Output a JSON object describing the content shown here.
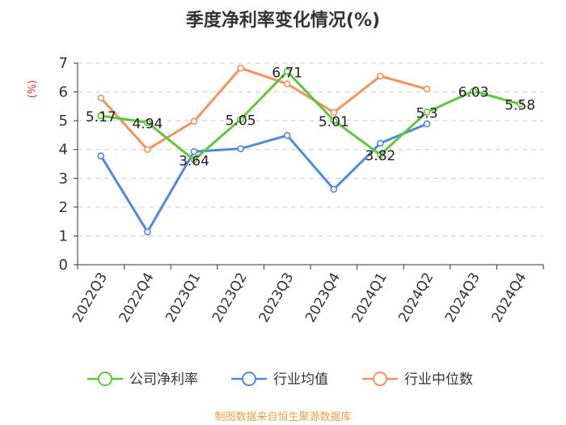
{
  "chart_data": {
    "type": "line",
    "title": "季度净利率变化情况(%)",
    "ylabel": "(%)",
    "categories": [
      "2022Q3",
      "2022Q4",
      "2023Q1",
      "2023Q2",
      "2023Q3",
      "2023Q4",
      "2024Q1",
      "2024Q2",
      "2024Q3",
      "2024Q4"
    ],
    "ylim": [
      0,
      7
    ],
    "yticks": [
      0,
      1,
      2,
      3,
      4,
      5,
      6,
      7
    ],
    "grid": true,
    "legend_position": "bottom",
    "series": [
      {
        "name": "公司净利率",
        "color": "#5ec83a",
        "values": [
          5.17,
          4.94,
          3.64,
          5.05,
          6.71,
          5.01,
          3.82,
          5.3,
          6.03,
          5.58
        ],
        "labels": [
          "5.17",
          "4.94",
          "3.64",
          "5.05",
          "6.71",
          "5.01",
          "3.82",
          "5.3",
          "6.03",
          "5.58"
        ]
      },
      {
        "name": "行业均值",
        "color": "#4e88e0",
        "values": [
          3.78,
          1.14,
          3.93,
          4.03,
          4.49,
          2.62,
          4.22,
          4.89,
          null,
          null
        ]
      },
      {
        "name": "行业中位数",
        "color": "#f7925d",
        "values": [
          5.79,
          4.0,
          4.98,
          6.83,
          6.28,
          5.29,
          6.55,
          6.1,
          null,
          null
        ]
      }
    ]
  },
  "source": {
    "text": "制图数据来自恒生聚源数据库",
    "color": "#e8a040"
  },
  "unit_color": "#e03030"
}
